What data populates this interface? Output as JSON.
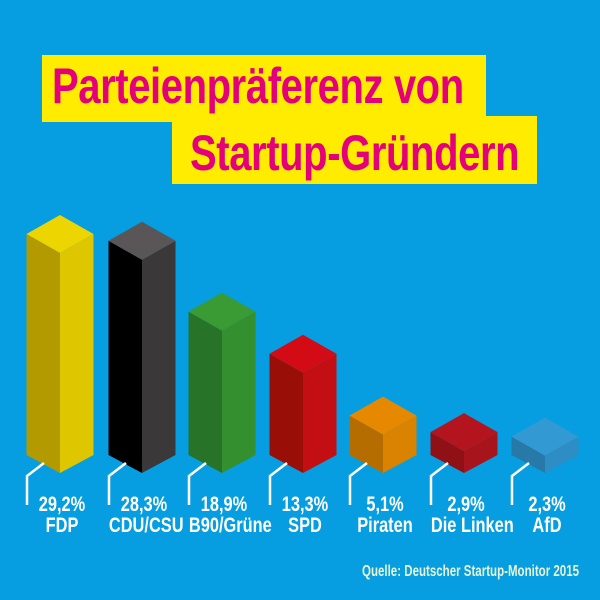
{
  "title": {
    "line1": "Parteienpräferenz von",
    "line2": "Startup-Gründern"
  },
  "source": "Quelle: Deutscher Startup-Monitor 2015",
  "colors": {
    "background": "#069ee0",
    "title_box": "#ffec00",
    "title_text": "#e3007a",
    "label_text": "#ffffff"
  },
  "bars": [
    {
      "name": "FDP",
      "value_label": "29,2%",
      "top": "#ecd500",
      "left": "#b39a00",
      "right": "#dec600"
    },
    {
      "name": "CDU/CSU",
      "value_label": "28,3%",
      "top": "#5a5557",
      "left": "#000000",
      "right": "#3b383a"
    },
    {
      "name": "B90/Grüne",
      "value_label": "18,9%",
      "top": "#3a9a34",
      "left": "#277428",
      "right": "#348f2f"
    },
    {
      "name": "SPD",
      "value_label": "13,3%",
      "top": "#d20b15",
      "left": "#9a0e08",
      "right": "#c30e13"
    },
    {
      "name": "Piraten",
      "value_label": "5,1%",
      "top": "#e68900",
      "left": "#b56d00",
      "right": "#d98300"
    },
    {
      "name": "Die Linken",
      "value_label": "2,9%",
      "top": "#b3141d",
      "left": "#8f1015",
      "right": "#a8141c"
    },
    {
      "name": "AfD",
      "value_label": "2,3%",
      "top": "#3399d3",
      "left": "#2779a8",
      "right": "#2e8dc4"
    }
  ],
  "chart_data": {
    "type": "bar",
    "title": "Parteienpräferenz von Startup-Gründern",
    "categories": [
      "FDP",
      "CDU/CSU",
      "B90/Grüne",
      "SPD",
      "Piraten",
      "Die Linken",
      "AfD"
    ],
    "values": [
      29.2,
      28.3,
      18.9,
      13.3,
      5.1,
      2.9,
      2.3
    ],
    "value_labels": [
      "29,2%",
      "28,3%",
      "18,9%",
      "13,3%",
      "5,1%",
      "2,9%",
      "2,3%"
    ],
    "xlabel": "",
    "ylabel": "",
    "unit": "%",
    "grid": false,
    "legend": "none",
    "style": "3d isometric columns",
    "source": "Quelle: Deutscher Startup-Monitor 2015"
  }
}
